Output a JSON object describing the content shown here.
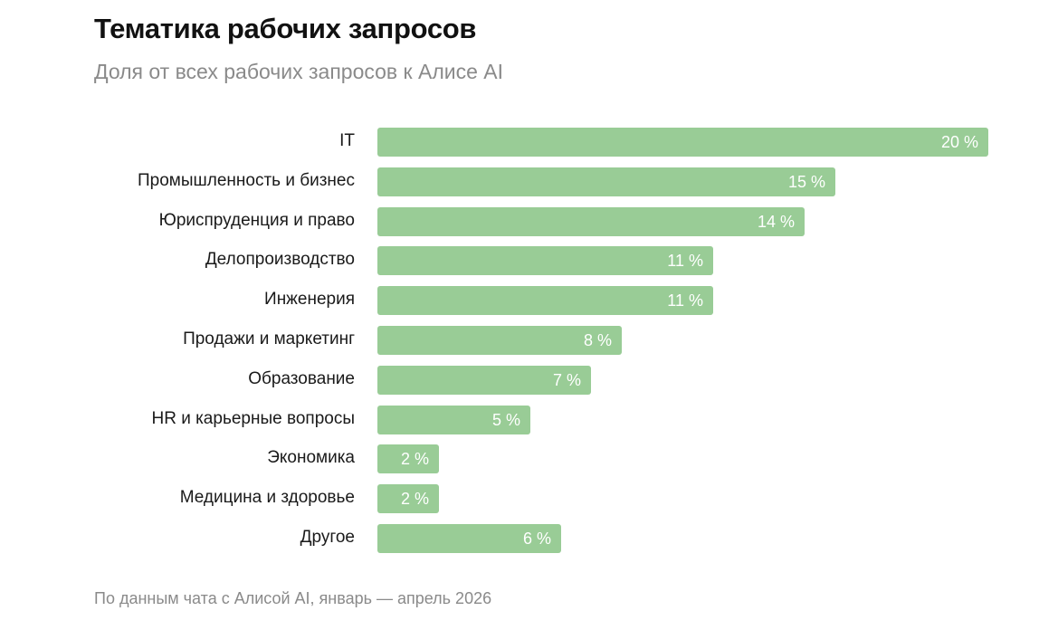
{
  "header": {
    "title": "Тематика рабочих запросов",
    "subtitle": "Доля от всех рабочих запросов к Алисе AI"
  },
  "footer": {
    "source": "По данным чата с Алисой AI, январь — апрель 2026"
  },
  "colors": {
    "bar": "#99cc96",
    "bar_label": "#ffffff",
    "category_label": "#1a1a1a",
    "muted_text": "#8a8a8a"
  },
  "chart_data": {
    "type": "bar",
    "orientation": "horizontal",
    "title": "Тематика рабочих запросов",
    "subtitle": "Доля от всех рабочих запросов к Алисе AI",
    "categories": [
      "IT",
      "Промышленность и бизнес",
      "Юриспруденция и право",
      "Делопроизводство",
      "Инженерия",
      "Продажи и маркетинг",
      "Образование",
      "HR и карьерные вопросы",
      "Экономика",
      "Медицина и здоровье",
      "Другое"
    ],
    "values": [
      20,
      15,
      14,
      11,
      11,
      8,
      7,
      5,
      2,
      2,
      6
    ],
    "value_labels": [
      "20 %",
      "15 %",
      "14 %",
      "11 %",
      "11 %",
      "8 %",
      "7 %",
      "5 %",
      "2 %",
      "2 %",
      "6 %"
    ],
    "unit": "%",
    "xlim": [
      0,
      20
    ],
    "grid": false,
    "legend": "none"
  }
}
